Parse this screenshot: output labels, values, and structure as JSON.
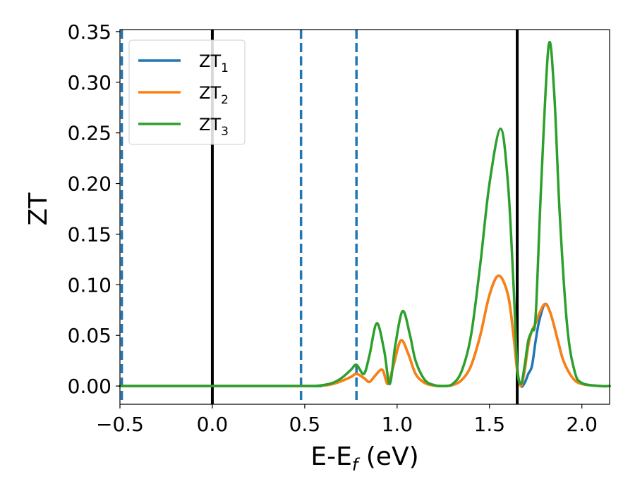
{
  "chart_data": {
    "type": "line",
    "xlabel": "E-E",
    "xlabel_subscript": "f",
    "xlabel_suffix": " (eV)",
    "ylabel": "ZT",
    "xlim": [
      -0.5,
      2.15
    ],
    "ylim": [
      -0.018,
      0.352
    ],
    "x_ticks": [
      -0.5,
      0.0,
      0.5,
      1.0,
      1.5,
      2.0
    ],
    "x_tick_labels": [
      "−0.5",
      "0.0",
      "0.5",
      "1.0",
      "1.5",
      "2.0"
    ],
    "y_ticks": [
      0.0,
      0.05,
      0.1,
      0.15,
      0.2,
      0.25,
      0.3,
      0.35
    ],
    "y_tick_labels": [
      "0.00",
      "0.05",
      "0.10",
      "0.15",
      "0.20",
      "0.25",
      "0.30",
      "0.35"
    ],
    "grid": false,
    "legend_position": "top-left",
    "vertical_lines": [
      {
        "x": -0.49,
        "style": "dashed",
        "color": "#1f77b4"
      },
      {
        "x": 0.0,
        "style": "solid",
        "color": "#000000"
      },
      {
        "x": 0.48,
        "style": "dashed",
        "color": "#1f77b4"
      },
      {
        "x": 0.78,
        "style": "dashed",
        "color": "#1f77b4"
      },
      {
        "x": 1.65,
        "style": "solid",
        "color": "#000000"
      }
    ],
    "series": [
      {
        "name": "ZT",
        "subscript": "1",
        "color": "#1f77b4",
        "x": [
          -0.5,
          0.5,
          0.55,
          0.6,
          0.65,
          0.7,
          0.75,
          0.78,
          0.82,
          0.85,
          0.88,
          0.92,
          0.95,
          0.98,
          1.02,
          1.06,
          1.1,
          1.15,
          1.2,
          1.25,
          1.3,
          1.35,
          1.4,
          1.45,
          1.5,
          1.55,
          1.6,
          1.63,
          1.65,
          1.67,
          1.69,
          1.71,
          1.73,
          1.75,
          1.77,
          1.8,
          1.83,
          1.87,
          1.9,
          1.95,
          2.0,
          2.1,
          2.15
        ],
        "y": [
          0.0,
          0.0,
          0.0,
          0.0005,
          0.002,
          0.005,
          0.009,
          0.012,
          0.008,
          0.004,
          0.01,
          0.016,
          0.002,
          0.02,
          0.045,
          0.032,
          0.012,
          0.003,
          0.0005,
          0.0,
          0.001,
          0.006,
          0.02,
          0.05,
          0.09,
          0.109,
          0.09,
          0.05,
          0.015,
          0.0,
          0.003,
          0.012,
          0.02,
          0.045,
          0.065,
          0.081,
          0.072,
          0.045,
          0.025,
          0.008,
          0.002,
          0.0,
          0.0
        ]
      },
      {
        "name": "ZT",
        "subscript": "2",
        "color": "#ff7f0e",
        "x": [
          -0.5,
          0.5,
          0.55,
          0.6,
          0.65,
          0.7,
          0.75,
          0.78,
          0.82,
          0.85,
          0.88,
          0.92,
          0.95,
          0.98,
          1.02,
          1.06,
          1.1,
          1.15,
          1.2,
          1.25,
          1.3,
          1.35,
          1.4,
          1.45,
          1.5,
          1.55,
          1.6,
          1.63,
          1.65,
          1.67,
          1.69,
          1.71,
          1.73,
          1.75,
          1.77,
          1.8,
          1.83,
          1.87,
          1.9,
          1.95,
          2.0,
          2.1,
          2.15
        ],
        "y": [
          0.0,
          0.0,
          0.0,
          0.0005,
          0.002,
          0.005,
          0.009,
          0.012,
          0.008,
          0.004,
          0.01,
          0.016,
          0.002,
          0.02,
          0.045,
          0.032,
          0.012,
          0.003,
          0.0005,
          0.0,
          0.001,
          0.006,
          0.02,
          0.05,
          0.09,
          0.109,
          0.09,
          0.05,
          0.015,
          0.0,
          0.015,
          0.04,
          0.055,
          0.062,
          0.072,
          0.081,
          0.072,
          0.045,
          0.025,
          0.008,
          0.002,
          0.0,
          0.0
        ]
      },
      {
        "name": "ZT",
        "subscript": "3",
        "color": "#2ca02c",
        "x": [
          -0.5,
          0.5,
          0.55,
          0.6,
          0.65,
          0.7,
          0.75,
          0.78,
          0.82,
          0.85,
          0.89,
          0.93,
          0.96,
          0.99,
          1.03,
          1.07,
          1.1,
          1.15,
          1.2,
          1.25,
          1.3,
          1.35,
          1.4,
          1.45,
          1.5,
          1.56,
          1.6,
          1.63,
          1.65,
          1.67,
          1.69,
          1.71,
          1.73,
          1.75,
          1.78,
          1.82,
          1.85,
          1.88,
          1.92,
          1.96,
          2.0,
          2.1,
          2.15
        ],
        "y": [
          0.0,
          0.0,
          0.0,
          0.001,
          0.003,
          0.008,
          0.016,
          0.021,
          0.012,
          0.03,
          0.062,
          0.035,
          0.002,
          0.04,
          0.074,
          0.05,
          0.025,
          0.006,
          0.001,
          0.0,
          0.002,
          0.015,
          0.05,
          0.12,
          0.2,
          0.254,
          0.2,
          0.1,
          0.02,
          0.002,
          0.02,
          0.045,
          0.055,
          0.07,
          0.2,
          0.336,
          0.29,
          0.17,
          0.06,
          0.015,
          0.003,
          0.0,
          0.0
        ]
      }
    ]
  }
}
